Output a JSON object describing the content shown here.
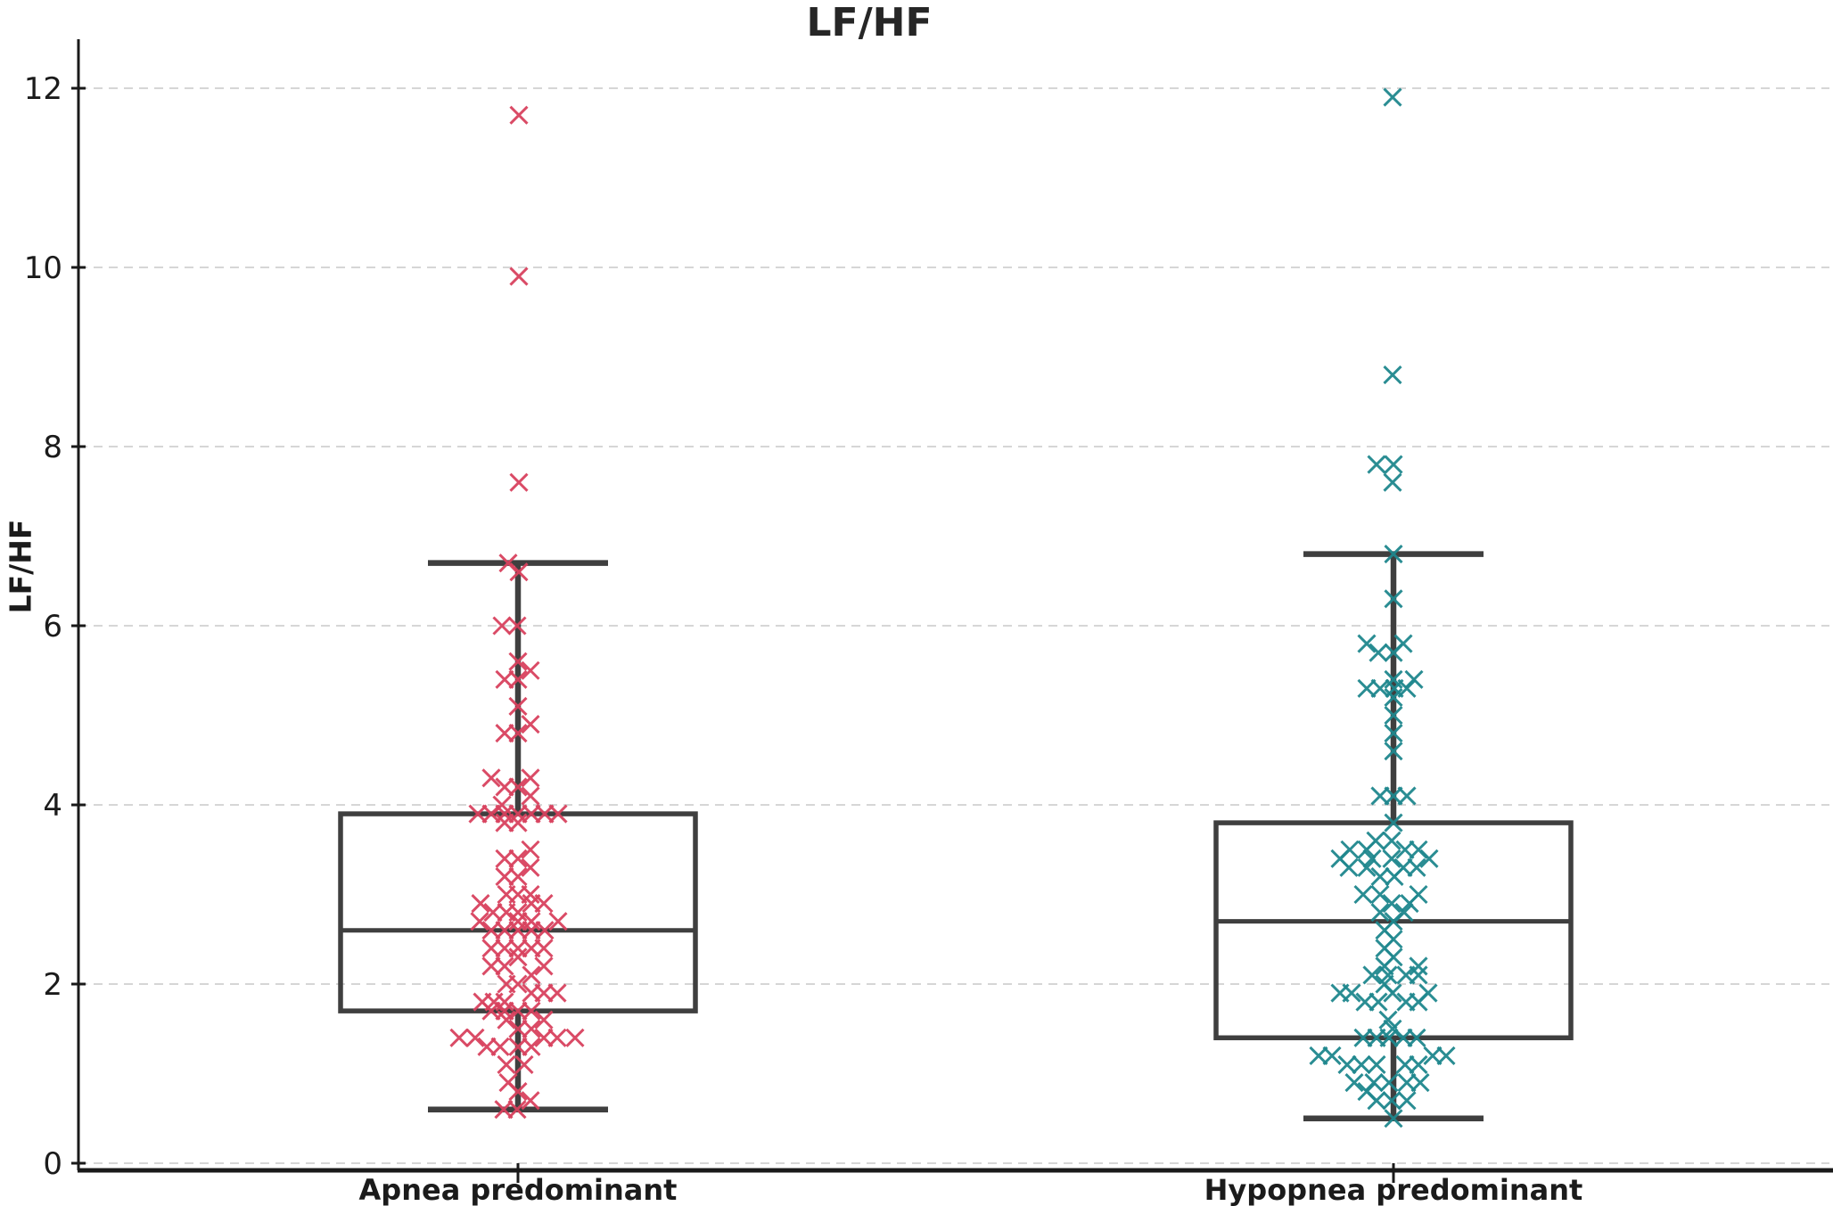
{
  "title": "LF/HF",
  "chart_data": {
    "type": "boxplot_with_jittered_points",
    "title": "LF/HF",
    "ylabel": "LF/HF",
    "xlabel": "",
    "ylim": [
      0,
      12.55
    ],
    "yticks": [
      0,
      2,
      4,
      6,
      8,
      10,
      12
    ],
    "grid": {
      "axis": "y",
      "style": "dashed",
      "color": "#c9c9c9"
    },
    "marker": "x",
    "box_color": "#3f3f3f",
    "text_color": "#1b1b1b",
    "categories": [
      "Apnea predominant",
      "Hypopnea predominant"
    ],
    "groups": [
      {
        "label": "Apnea predominant",
        "marker_color": "#d8415e",
        "box": {
          "whisker_low": 0.6,
          "q1": 1.7,
          "median": 2.6,
          "q3": 3.9,
          "whisker_high": 6.7
        },
        "points": [
          [
            1,
            11.7
          ],
          [
            1,
            9.9
          ],
          [
            1,
            7.6
          ],
          [
            -11,
            6.7
          ],
          [
            1,
            6.6
          ],
          [
            -18,
            6.0
          ],
          [
            -1,
            6.0
          ],
          [
            0,
            5.6
          ],
          [
            14,
            5.5
          ],
          [
            -15,
            5.4
          ],
          [
            0,
            5.4
          ],
          [
            0,
            5.1
          ],
          [
            14,
            4.9
          ],
          [
            -15,
            4.8
          ],
          [
            0,
            4.8
          ],
          [
            -30,
            4.3
          ],
          [
            14,
            4.3
          ],
          [
            -15,
            4.2
          ],
          [
            0,
            4.2
          ],
          [
            14,
            4.1
          ],
          [
            -18,
            4.0
          ],
          [
            -45,
            3.9
          ],
          [
            -30,
            3.9
          ],
          [
            -15,
            3.9
          ],
          [
            0,
            3.9
          ],
          [
            15,
            3.9
          ],
          [
            30,
            3.9
          ],
          [
            45,
            3.9
          ],
          [
            -15,
            3.8
          ],
          [
            0,
            3.8
          ],
          [
            14,
            3.5
          ],
          [
            -15,
            3.4
          ],
          [
            0,
            3.4
          ],
          [
            14,
            3.3
          ],
          [
            -15,
            3.2
          ],
          [
            0,
            3.2
          ],
          [
            -13,
            3.0
          ],
          [
            0,
            3.0
          ],
          [
            14,
            3.0
          ],
          [
            -42,
            2.9
          ],
          [
            15,
            2.9
          ],
          [
            29,
            2.9
          ],
          [
            -28,
            2.8
          ],
          [
            -13,
            2.8
          ],
          [
            0,
            2.8
          ],
          [
            -43,
            2.7
          ],
          [
            0,
            2.7
          ],
          [
            15,
            2.7
          ],
          [
            45,
            2.7
          ],
          [
            -30,
            2.6
          ],
          [
            -15,
            2.6
          ],
          [
            0,
            2.6
          ],
          [
            15,
            2.6
          ],
          [
            30,
            2.6
          ],
          [
            -30,
            2.4
          ],
          [
            -15,
            2.4
          ],
          [
            0,
            2.4
          ],
          [
            15,
            2.4
          ],
          [
            29,
            2.4
          ],
          [
            0,
            2.3
          ],
          [
            -30,
            2.2
          ],
          [
            -15,
            2.2
          ],
          [
            29,
            2.2
          ],
          [
            15,
            2.1
          ],
          [
            -13,
            2.0
          ],
          [
            0,
            2.0
          ],
          [
            15,
            1.9
          ],
          [
            29,
            1.9
          ],
          [
            44,
            1.9
          ],
          [
            -40,
            1.8
          ],
          [
            -27,
            1.8
          ],
          [
            -15,
            1.8
          ],
          [
            -30,
            1.7
          ],
          [
            -15,
            1.7
          ],
          [
            0,
            1.7
          ],
          [
            15,
            1.7
          ],
          [
            -13,
            1.6
          ],
          [
            29,
            1.6
          ],
          [
            0,
            1.5
          ],
          [
            15,
            1.5
          ],
          [
            -66,
            1.4
          ],
          [
            -48,
            1.4
          ],
          [
            29,
            1.4
          ],
          [
            44,
            1.4
          ],
          [
            64,
            1.4
          ],
          [
            -35,
            1.3
          ],
          [
            -20,
            1.3
          ],
          [
            0,
            1.3
          ],
          [
            15,
            1.3
          ],
          [
            -13,
            1.1
          ],
          [
            7,
            1.1
          ],
          [
            -11,
            0.9
          ],
          [
            0,
            0.8
          ],
          [
            14,
            0.7
          ],
          [
            -16,
            0.6
          ],
          [
            -1,
            0.6
          ]
        ]
      },
      {
        "label": "Hypopnea predominant",
        "marker_color": "#1f878d",
        "box": {
          "whisker_low": 0.5,
          "q1": 1.4,
          "median": 2.7,
          "q3": 3.8,
          "whisker_high": 6.8
        },
        "points": [
          [
            -1,
            11.9
          ],
          [
            -1,
            8.8
          ],
          [
            -19,
            7.8
          ],
          [
            0,
            7.8
          ],
          [
            -1,
            7.6
          ],
          [
            0,
            6.8
          ],
          [
            0,
            6.3
          ],
          [
            -30,
            5.8
          ],
          [
            11,
            5.8
          ],
          [
            -17,
            5.7
          ],
          [
            0,
            5.7
          ],
          [
            0,
            5.4
          ],
          [
            23,
            5.4
          ],
          [
            -30,
            5.3
          ],
          [
            -15,
            5.3
          ],
          [
            1,
            5.3
          ],
          [
            15,
            5.3
          ],
          [
            0,
            5.2
          ],
          [
            0,
            5.0
          ],
          [
            0,
            4.8
          ],
          [
            0,
            4.6
          ],
          [
            -15,
            4.1
          ],
          [
            0,
            4.1
          ],
          [
            15,
            4.1
          ],
          [
            0,
            3.8
          ],
          [
            -20,
            3.6
          ],
          [
            -2,
            3.6
          ],
          [
            -49,
            3.5
          ],
          [
            -30,
            3.5
          ],
          [
            13,
            3.5
          ],
          [
            28,
            3.5
          ],
          [
            -60,
            3.4
          ],
          [
            -24,
            3.4
          ],
          [
            -2,
            3.4
          ],
          [
            40,
            3.4
          ],
          [
            -50,
            3.3
          ],
          [
            -30,
            3.3
          ],
          [
            11,
            3.3
          ],
          [
            26,
            3.3
          ],
          [
            -15,
            3.2
          ],
          [
            1,
            3.2
          ],
          [
            -34,
            3.0
          ],
          [
            -15,
            3.0
          ],
          [
            28,
            3.0
          ],
          [
            -2,
            2.9
          ],
          [
            18,
            2.9
          ],
          [
            -15,
            2.8
          ],
          [
            12,
            2.8
          ],
          [
            0,
            2.7
          ],
          [
            -10,
            2.6
          ],
          [
            0,
            2.5
          ],
          [
            -10,
            2.4
          ],
          [
            0,
            2.3
          ],
          [
            -10,
            2.2
          ],
          [
            28,
            2.2
          ],
          [
            -24,
            2.1
          ],
          [
            -6,
            2.1
          ],
          [
            14,
            2.1
          ],
          [
            28,
            2.1
          ],
          [
            -10,
            2.0
          ],
          [
            -60,
            1.9
          ],
          [
            -47,
            1.9
          ],
          [
            -1,
            1.9
          ],
          [
            39,
            1.9
          ],
          [
            -32,
            1.8
          ],
          [
            -17,
            1.8
          ],
          [
            14,
            1.8
          ],
          [
            28,
            1.8
          ],
          [
            -6,
            1.6
          ],
          [
            -1,
            1.5
          ],
          [
            -34,
            1.4
          ],
          [
            -19,
            1.4
          ],
          [
            -5,
            1.4
          ],
          [
            11,
            1.4
          ],
          [
            26,
            1.4
          ],
          [
            -84,
            1.2
          ],
          [
            -69,
            1.2
          ],
          [
            44,
            1.2
          ],
          [
            59,
            1.2
          ],
          [
            -52,
            1.1
          ],
          [
            -36,
            1.1
          ],
          [
            -19,
            1.1
          ],
          [
            13,
            1.1
          ],
          [
            28,
            1.1
          ],
          [
            -44,
            0.9
          ],
          [
            -22,
            0.9
          ],
          [
            -5,
            0.9
          ],
          [
            15,
            0.9
          ],
          [
            30,
            0.9
          ],
          [
            -30,
            0.8
          ],
          [
            -19,
            0.7
          ],
          [
            -2,
            0.7
          ],
          [
            15,
            0.7
          ],
          [
            0,
            0.5
          ]
        ]
      }
    ]
  }
}
